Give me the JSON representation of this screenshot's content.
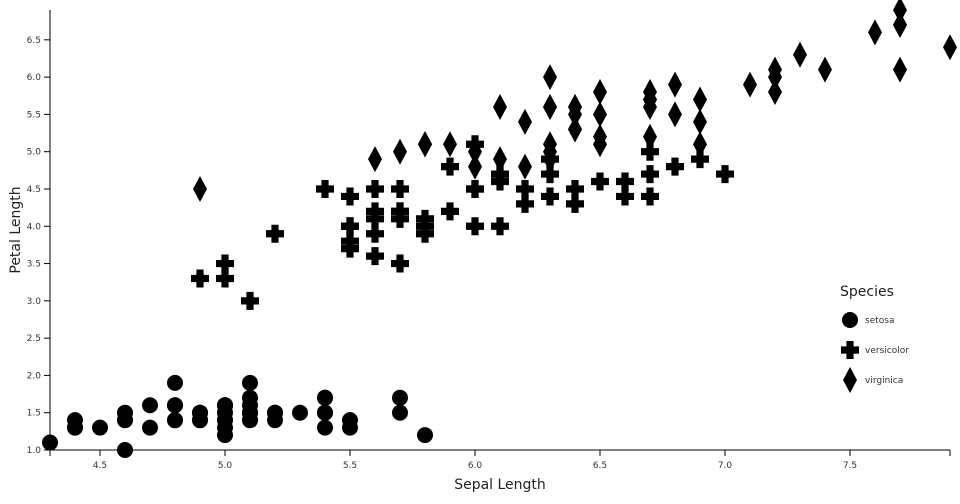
{
  "chart_data": {
    "type": "scatter",
    "xlabel": "Sepal Length",
    "ylabel": "Petal Length",
    "xlim": [
      4.3,
      7.9
    ],
    "ylim": [
      1.0,
      6.9
    ],
    "xticks": [
      "4.5",
      "5.0",
      "5.5",
      "6.0",
      "6.5",
      "7.0",
      "7.5"
    ],
    "yticks": [
      "1.0",
      "1.5",
      "2.0",
      "2.5",
      "3.0",
      "3.5",
      "4.0",
      "4.5",
      "5.0",
      "5.5",
      "6.0",
      "6.5"
    ],
    "grid": false,
    "legend": {
      "title": "Species",
      "placement": "right"
    },
    "marker_color": "#000000",
    "series": [
      {
        "name": "setosa",
        "shape": "circle",
        "points": [
          [
            5.1,
            1.4
          ],
          [
            4.9,
            1.4
          ],
          [
            4.7,
            1.3
          ],
          [
            4.6,
            1.5
          ],
          [
            5.0,
            1.4
          ],
          [
            5.4,
            1.7
          ],
          [
            4.6,
            1.4
          ],
          [
            5.0,
            1.5
          ],
          [
            4.4,
            1.4
          ],
          [
            4.9,
            1.5
          ],
          [
            5.4,
            1.5
          ],
          [
            4.8,
            1.6
          ],
          [
            4.8,
            1.4
          ],
          [
            4.3,
            1.1
          ],
          [
            5.8,
            1.2
          ],
          [
            5.7,
            1.5
          ],
          [
            5.4,
            1.3
          ],
          [
            5.1,
            1.4
          ],
          [
            5.7,
            1.7
          ],
          [
            5.1,
            1.5
          ],
          [
            5.4,
            1.7
          ],
          [
            5.1,
            1.5
          ],
          [
            4.6,
            1.0
          ],
          [
            5.1,
            1.7
          ],
          [
            4.8,
            1.9
          ],
          [
            5.0,
            1.6
          ],
          [
            5.0,
            1.6
          ],
          [
            5.2,
            1.5
          ],
          [
            5.2,
            1.4
          ],
          [
            4.7,
            1.6
          ],
          [
            4.8,
            1.6
          ],
          [
            5.4,
            1.5
          ],
          [
            5.2,
            1.5
          ],
          [
            5.5,
            1.4
          ],
          [
            4.9,
            1.5
          ],
          [
            5.0,
            1.2
          ],
          [
            5.5,
            1.3
          ],
          [
            4.9,
            1.4
          ],
          [
            4.4,
            1.3
          ],
          [
            5.1,
            1.5
          ],
          [
            5.0,
            1.3
          ],
          [
            4.5,
            1.3
          ],
          [
            4.4,
            1.3
          ],
          [
            5.0,
            1.6
          ],
          [
            5.1,
            1.9
          ],
          [
            4.8,
            1.4
          ],
          [
            5.1,
            1.6
          ],
          [
            4.6,
            1.4
          ],
          [
            5.3,
            1.5
          ],
          [
            5.0,
            1.4
          ]
        ]
      },
      {
        "name": "versicolor",
        "shape": "cross",
        "points": [
          [
            7.0,
            4.7
          ],
          [
            6.4,
            4.5
          ],
          [
            6.9,
            4.9
          ],
          [
            5.5,
            4.0
          ],
          [
            6.5,
            4.6
          ],
          [
            5.7,
            4.5
          ],
          [
            6.3,
            4.7
          ],
          [
            4.9,
            3.3
          ],
          [
            6.6,
            4.6
          ],
          [
            5.2,
            3.9
          ],
          [
            5.0,
            3.5
          ],
          [
            5.9,
            4.2
          ],
          [
            6.0,
            4.0
          ],
          [
            6.1,
            4.7
          ],
          [
            5.6,
            3.6
          ],
          [
            6.7,
            4.4
          ],
          [
            5.6,
            4.5
          ],
          [
            5.8,
            4.1
          ],
          [
            6.2,
            4.5
          ],
          [
            5.6,
            3.9
          ],
          [
            5.9,
            4.8
          ],
          [
            6.1,
            4.0
          ],
          [
            6.3,
            4.9
          ],
          [
            6.1,
            4.7
          ],
          [
            6.4,
            4.3
          ],
          [
            6.6,
            4.4
          ],
          [
            6.8,
            4.8
          ],
          [
            6.7,
            5.0
          ],
          [
            6.0,
            4.5
          ],
          [
            5.7,
            3.5
          ],
          [
            5.5,
            3.8
          ],
          [
            5.5,
            3.7
          ],
          [
            5.8,
            3.9
          ],
          [
            6.0,
            5.1
          ],
          [
            5.4,
            4.5
          ],
          [
            6.0,
            4.5
          ],
          [
            6.7,
            4.7
          ],
          [
            6.3,
            4.4
          ],
          [
            5.6,
            4.1
          ],
          [
            5.5,
            4.0
          ],
          [
            5.5,
            4.4
          ],
          [
            6.1,
            4.6
          ],
          [
            5.8,
            4.0
          ],
          [
            5.0,
            3.3
          ],
          [
            5.6,
            4.2
          ],
          [
            5.7,
            4.2
          ],
          [
            5.7,
            4.2
          ],
          [
            6.2,
            4.3
          ],
          [
            5.1,
            3.0
          ],
          [
            5.7,
            4.1
          ]
        ]
      },
      {
        "name": "virginica",
        "shape": "diamond",
        "points": [
          [
            6.3,
            6.0
          ],
          [
            5.8,
            5.1
          ],
          [
            7.1,
            5.9
          ],
          [
            6.3,
            5.6
          ],
          [
            6.5,
            5.8
          ],
          [
            7.6,
            6.6
          ],
          [
            4.9,
            4.5
          ],
          [
            7.3,
            6.3
          ],
          [
            6.7,
            5.8
          ],
          [
            7.2,
            6.1
          ],
          [
            6.5,
            5.1
          ],
          [
            6.4,
            5.3
          ],
          [
            6.8,
            5.5
          ],
          [
            5.7,
            5.0
          ],
          [
            5.8,
            5.1
          ],
          [
            6.4,
            5.3
          ],
          [
            6.5,
            5.5
          ],
          [
            7.7,
            6.7
          ],
          [
            7.7,
            6.9
          ],
          [
            6.0,
            5.0
          ],
          [
            6.9,
            5.7
          ],
          [
            5.6,
            4.9
          ],
          [
            7.7,
            6.7
          ],
          [
            6.3,
            4.9
          ],
          [
            6.7,
            5.7
          ],
          [
            7.2,
            6.0
          ],
          [
            6.2,
            4.8
          ],
          [
            6.1,
            4.9
          ],
          [
            6.4,
            5.6
          ],
          [
            7.2,
            5.8
          ],
          [
            7.4,
            6.1
          ],
          [
            7.9,
            6.4
          ],
          [
            6.4,
            5.6
          ],
          [
            6.3,
            5.1
          ],
          [
            6.1,
            5.6
          ],
          [
            7.7,
            6.1
          ],
          [
            6.3,
            5.6
          ],
          [
            6.4,
            5.5
          ],
          [
            6.0,
            4.8
          ],
          [
            6.9,
            5.4
          ],
          [
            6.7,
            5.6
          ],
          [
            6.9,
            5.1
          ],
          [
            5.8,
            5.1
          ],
          [
            6.8,
            5.9
          ],
          [
            6.7,
            5.7
          ],
          [
            6.7,
            5.2
          ],
          [
            6.3,
            5.0
          ],
          [
            6.5,
            5.2
          ],
          [
            6.2,
            5.4
          ],
          [
            5.9,
            5.1
          ]
        ]
      }
    ]
  }
}
